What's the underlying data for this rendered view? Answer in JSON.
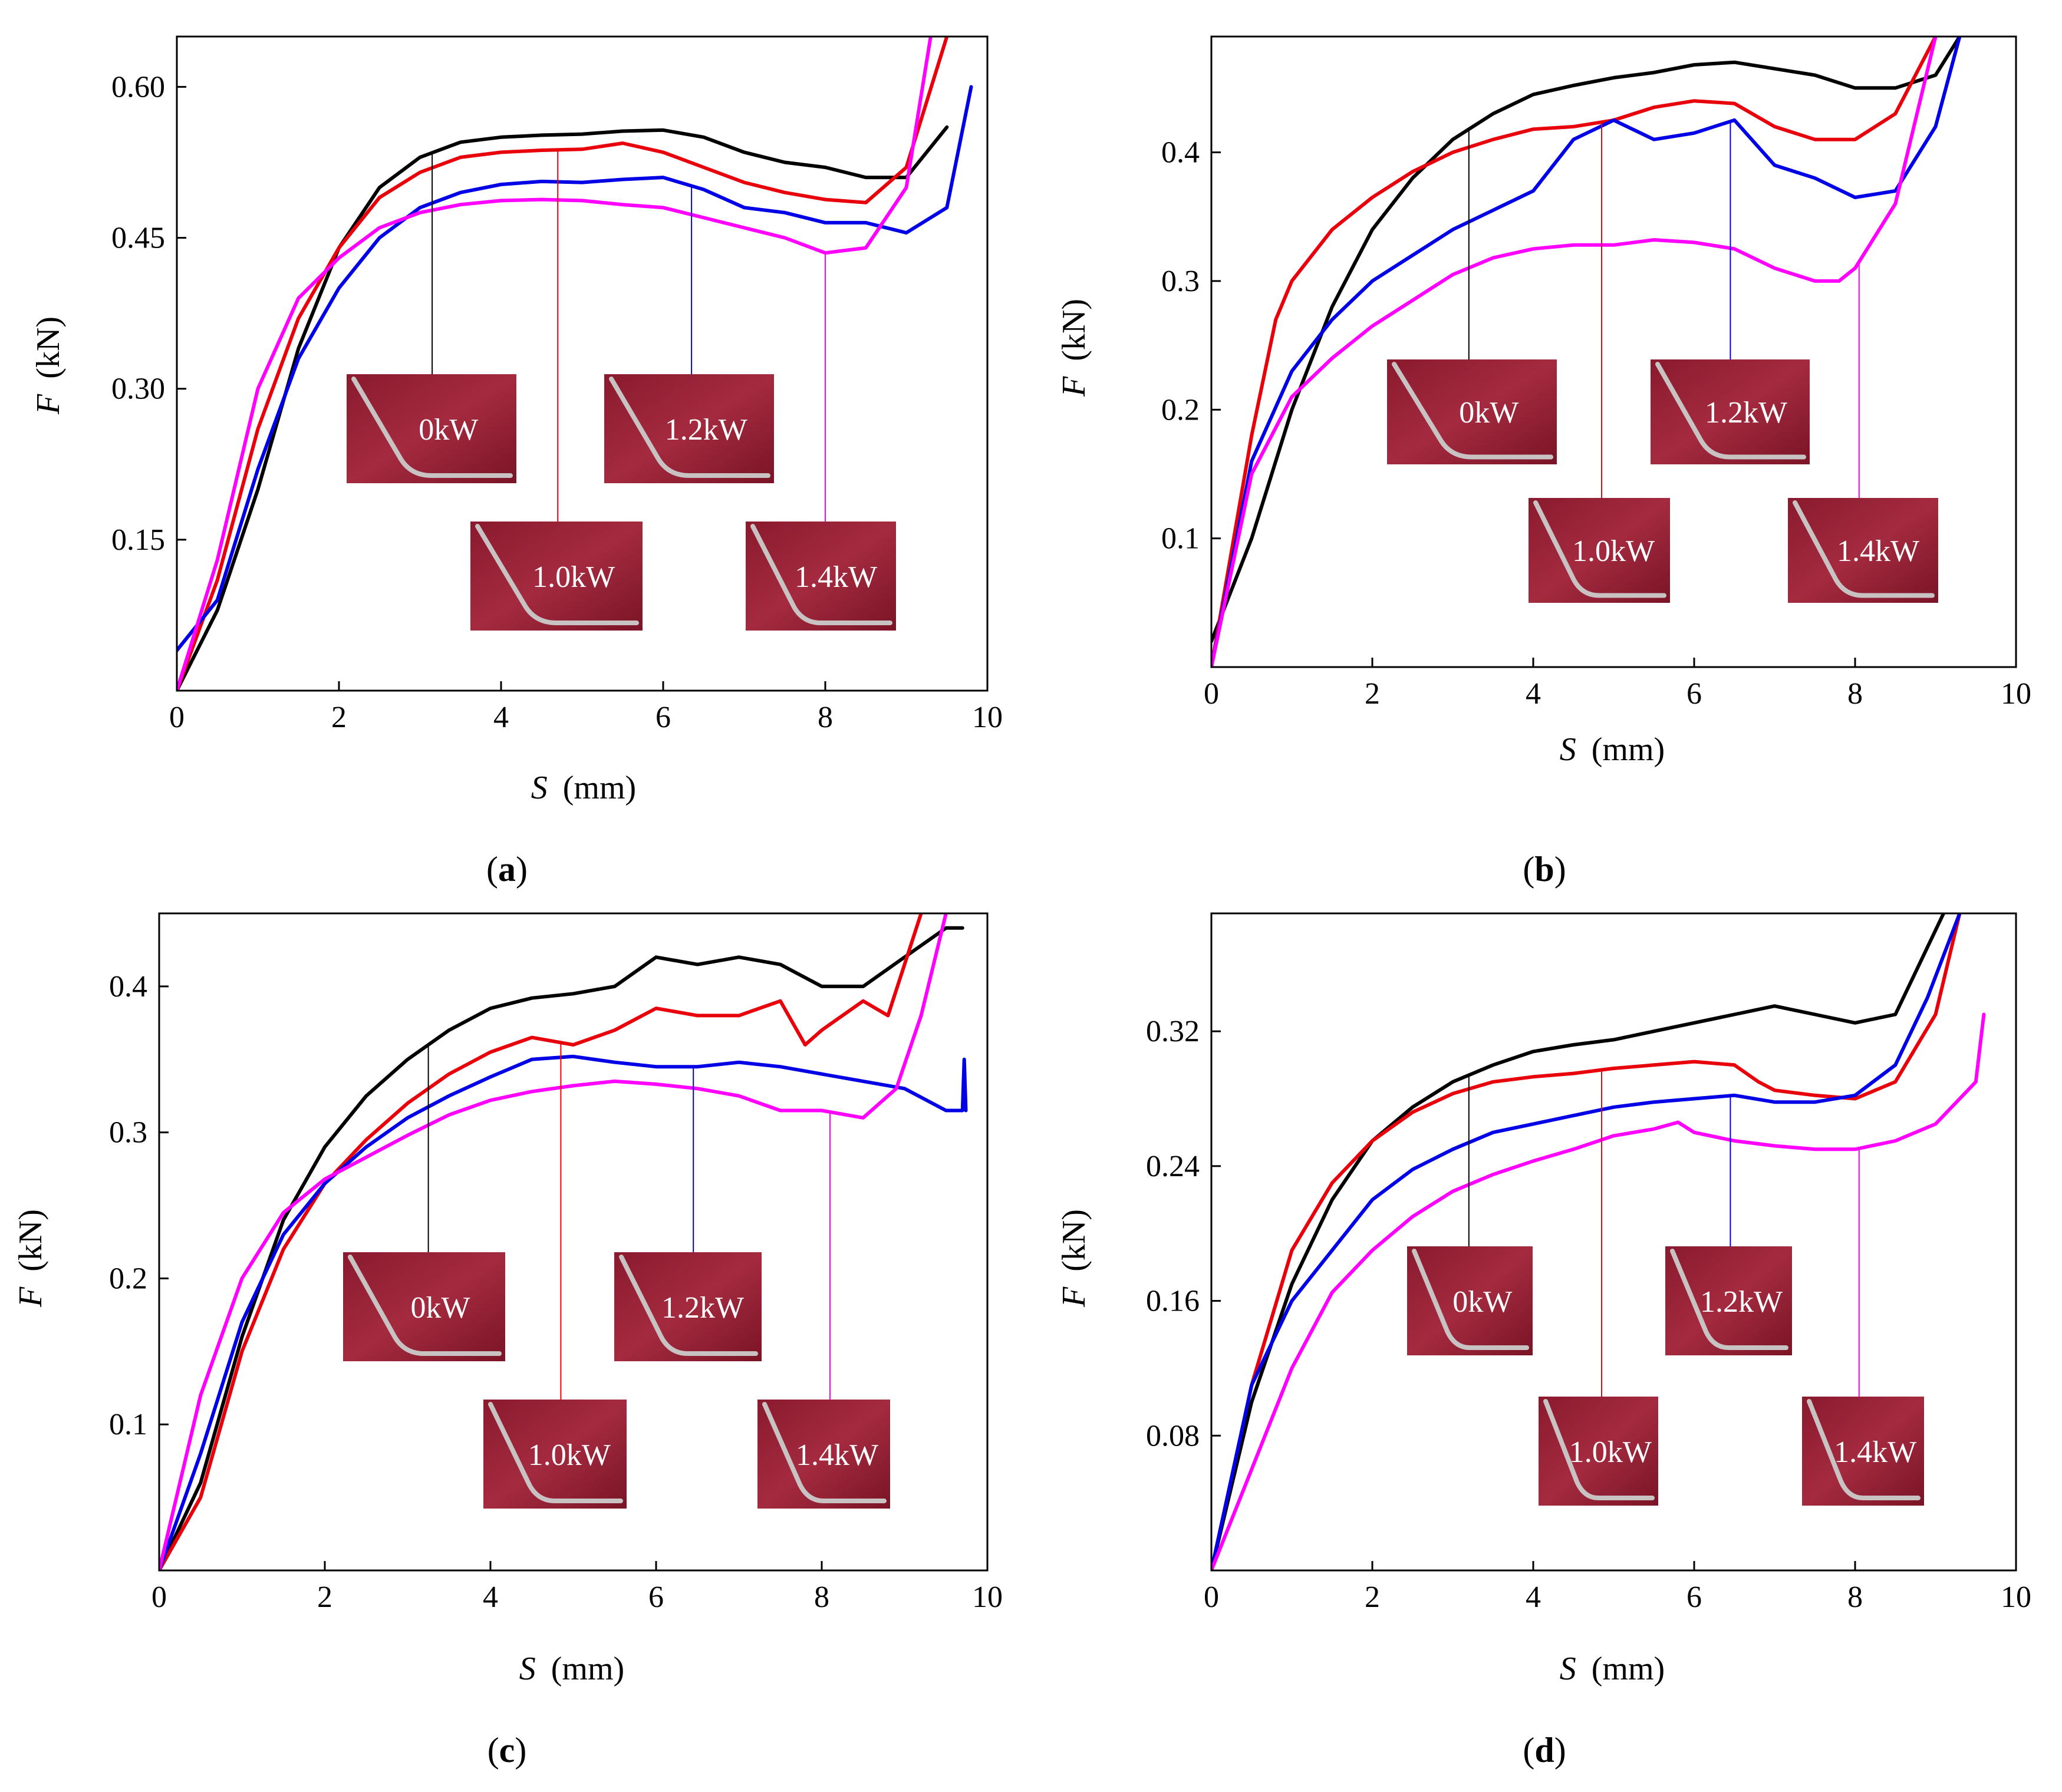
{
  "chart_data": [
    {
      "id": "a",
      "type": "line",
      "panel_label": "a",
      "xlabel": "S",
      "xunit": "(mm)",
      "ylabel": "F",
      "yunit": "(kN)",
      "xlim": [
        0,
        10
      ],
      "ylim": [
        0,
        0.65
      ],
      "x_ticks": [
        0,
        2,
        4,
        6,
        8,
        10
      ],
      "x_tick_labels": [
        "0",
        "2",
        "4",
        "6",
        "8",
        "10"
      ],
      "y_ticks": [
        0.15,
        0.3,
        0.45,
        0.6
      ],
      "y_tick_labels": [
        "0.15",
        "0.30",
        "0.45",
        "0.60"
      ],
      "series": [
        {
          "name": "0kW",
          "color": "#000000",
          "x": [
            0,
            0.5,
            1,
            1.5,
            2,
            2.5,
            3,
            3.5,
            4,
            4.5,
            5,
            5.5,
            6,
            6.5,
            7,
            7.5,
            8,
            8.5,
            9,
            9.5
          ],
          "y": [
            0.0,
            0.08,
            0.2,
            0.34,
            0.44,
            0.5,
            0.53,
            0.545,
            0.55,
            0.552,
            0.553,
            0.556,
            0.557,
            0.55,
            0.535,
            0.525,
            0.52,
            0.51,
            0.51,
            0.56
          ]
        },
        {
          "name": "1.0kW",
          "color": "#e8000b",
          "x": [
            0,
            0.5,
            1,
            1.5,
            2,
            2.5,
            3,
            3.5,
            4,
            4.5,
            5,
            5.5,
            6,
            6.5,
            7,
            7.5,
            8,
            8.5,
            9,
            9.5
          ],
          "y": [
            0.0,
            0.11,
            0.26,
            0.37,
            0.44,
            0.49,
            0.515,
            0.53,
            0.535,
            0.537,
            0.538,
            0.544,
            0.535,
            0.52,
            0.505,
            0.495,
            0.488,
            0.485,
            0.52,
            0.65
          ]
        },
        {
          "name": "1.2kW",
          "color": "#0000e6",
          "x": [
            0,
            0.5,
            1,
            1.5,
            2,
            2.5,
            3,
            3.5,
            4,
            4.5,
            5,
            5.5,
            6,
            6.5,
            7,
            7.5,
            8,
            8.5,
            9,
            9.5,
            9.8
          ],
          "y": [
            0.04,
            0.09,
            0.22,
            0.33,
            0.4,
            0.45,
            0.48,
            0.495,
            0.503,
            0.506,
            0.505,
            0.508,
            0.51,
            0.498,
            0.48,
            0.475,
            0.465,
            0.465,
            0.455,
            0.48,
            0.6
          ]
        },
        {
          "name": "1.4kW",
          "color": "#ff00ff",
          "x": [
            0,
            0.5,
            1,
            1.5,
            2,
            2.5,
            3,
            3.5,
            4,
            4.5,
            5,
            5.5,
            6,
            6.5,
            7,
            7.5,
            8,
            8.5,
            9,
            9.3
          ],
          "y": [
            0.0,
            0.13,
            0.3,
            0.39,
            0.43,
            0.46,
            0.475,
            0.483,
            0.487,
            0.488,
            0.487,
            0.483,
            0.48,
            0.47,
            0.46,
            0.45,
            0.435,
            0.44,
            0.5,
            0.65
          ]
        }
      ],
      "insets": [
        {
          "label": "0kW",
          "series": "0kW",
          "x": 3.15
        },
        {
          "label": "1.0kW",
          "series": "1.0kW",
          "x": 4.7
        },
        {
          "label": "1.2kW",
          "series": "1.2kW",
          "x": 6.35
        },
        {
          "label": "1.4kW",
          "series": "1.4kW",
          "x": 8.0
        }
      ]
    },
    {
      "id": "b",
      "type": "line",
      "panel_label": "b",
      "xlabel": "S",
      "xunit": "(mm)",
      "ylabel": "F",
      "yunit": "(kN)",
      "xlim": [
        0,
        10
      ],
      "ylim": [
        0,
        0.49
      ],
      "x_ticks": [
        0,
        2,
        4,
        6,
        8,
        10
      ],
      "x_tick_labels": [
        "0",
        "2",
        "4",
        "6",
        "8",
        "10"
      ],
      "y_ticks": [
        0.1,
        0.2,
        0.3,
        0.4
      ],
      "y_tick_labels": [
        "0.1",
        "0.2",
        "0.3",
        "0.4"
      ],
      "series": [
        {
          "name": "0kW",
          "color": "#000000",
          "x": [
            0,
            0.5,
            1,
            1.5,
            2,
            2.5,
            3,
            3.5,
            4,
            4.5,
            5,
            5.5,
            6,
            6.5,
            7,
            7.5,
            8,
            8.5,
            9,
            9.3
          ],
          "y": [
            0.02,
            0.1,
            0.2,
            0.28,
            0.34,
            0.38,
            0.41,
            0.43,
            0.445,
            0.452,
            0.458,
            0.462,
            0.468,
            0.47,
            0.465,
            0.46,
            0.45,
            0.45,
            0.46,
            0.49
          ]
        },
        {
          "name": "1.0kW",
          "color": "#e8000b",
          "x": [
            0,
            0.5,
            0.8,
            1,
            1.5,
            2,
            2.5,
            3,
            3.5,
            4,
            4.5,
            5,
            5.5,
            6,
            6.5,
            7,
            7.5,
            8,
            8.5,
            9
          ],
          "y": [
            0.0,
            0.18,
            0.27,
            0.3,
            0.34,
            0.365,
            0.385,
            0.4,
            0.41,
            0.418,
            0.42,
            0.425,
            0.435,
            0.44,
            0.438,
            0.42,
            0.41,
            0.41,
            0.43,
            0.49
          ]
        },
        {
          "name": "1.2kW",
          "color": "#0000e6",
          "x": [
            0,
            0.5,
            1,
            1.5,
            2,
            2.5,
            3,
            3.5,
            4,
            4.5,
            5,
            5.5,
            6,
            6.5,
            7,
            7.5,
            8,
            8.5,
            9,
            9.3
          ],
          "y": [
            0.0,
            0.16,
            0.23,
            0.27,
            0.3,
            0.32,
            0.34,
            0.355,
            0.37,
            0.41,
            0.425,
            0.41,
            0.415,
            0.425,
            0.39,
            0.38,
            0.365,
            0.37,
            0.42,
            0.49
          ]
        },
        {
          "name": "1.4kW",
          "color": "#ff00ff",
          "x": [
            0,
            0.5,
            1,
            1.5,
            2,
            2.5,
            3,
            3.5,
            4,
            4.5,
            5,
            5.5,
            6,
            6.5,
            7,
            7.5,
            7.8,
            8,
            8.5,
            9
          ],
          "y": [
            0.0,
            0.15,
            0.21,
            0.24,
            0.265,
            0.285,
            0.305,
            0.318,
            0.325,
            0.328,
            0.328,
            0.332,
            0.33,
            0.325,
            0.31,
            0.3,
            0.3,
            0.31,
            0.36,
            0.49
          ]
        }
      ],
      "insets": [
        {
          "label": "0kW",
          "series": "0kW",
          "x": 3.2
        },
        {
          "label": "1.0kW",
          "series": "1.0kW",
          "x": 4.85
        },
        {
          "label": "1.2kW",
          "series": "1.2kW",
          "x": 6.45
        },
        {
          "label": "1.4kW",
          "series": "1.4kW",
          "x": 8.05
        }
      ]
    },
    {
      "id": "c",
      "type": "line",
      "panel_label": "c",
      "xlabel": "S",
      "xunit": "(mm)",
      "ylabel": "F",
      "yunit": "(kN)",
      "xlim": [
        0,
        10
      ],
      "ylim": [
        0,
        0.45
      ],
      "x_ticks": [
        0,
        2,
        4,
        6,
        8,
        10
      ],
      "x_tick_labels": [
        "0",
        "2",
        "4",
        "6",
        "8",
        "10"
      ],
      "y_ticks": [
        0.1,
        0.2,
        0.3,
        0.4
      ],
      "y_tick_labels": [
        "0.1",
        "0.2",
        "0.3",
        "0.4"
      ],
      "series": [
        {
          "name": "0kW",
          "color": "#000000",
          "x": [
            0,
            0.5,
            1,
            1.5,
            2,
            2.5,
            3,
            3.5,
            4,
            4.5,
            5,
            5.5,
            6,
            6.5,
            7,
            7.5,
            8,
            8.5,
            9,
            9.5,
            9.7
          ],
          "y": [
            0.0,
            0.06,
            0.16,
            0.24,
            0.29,
            0.325,
            0.35,
            0.37,
            0.385,
            0.392,
            0.395,
            0.4,
            0.42,
            0.415,
            0.42,
            0.415,
            0.4,
            0.4,
            0.42,
            0.44,
            0.44
          ]
        },
        {
          "name": "1.0kW",
          "color": "#e8000b",
          "x": [
            0,
            0.5,
            1,
            1.5,
            2,
            2.5,
            3,
            3.5,
            4,
            4.5,
            5,
            5.5,
            6,
            6.5,
            7,
            7.5,
            7.8,
            8,
            8.5,
            8.8,
            9.2
          ],
          "y": [
            0.0,
            0.05,
            0.15,
            0.22,
            0.265,
            0.295,
            0.32,
            0.34,
            0.355,
            0.365,
            0.36,
            0.37,
            0.385,
            0.38,
            0.38,
            0.39,
            0.36,
            0.37,
            0.39,
            0.38,
            0.45
          ]
        },
        {
          "name": "1.2kW",
          "color": "#0000e6",
          "x": [
            0,
            0.5,
            1,
            1.5,
            2,
            2.5,
            3,
            3.5,
            4,
            4.5,
            5,
            5.5,
            6,
            6.5,
            7,
            7.5,
            8,
            8.5,
            9,
            9.5,
            9.7,
            9.72,
            9.74
          ],
          "y": [
            0.0,
            0.08,
            0.17,
            0.23,
            0.265,
            0.29,
            0.31,
            0.325,
            0.338,
            0.35,
            0.352,
            0.348,
            0.345,
            0.345,
            0.348,
            0.345,
            0.34,
            0.335,
            0.33,
            0.315,
            0.315,
            0.35,
            0.315
          ]
        },
        {
          "name": "1.4kW",
          "color": "#ff00ff",
          "x": [
            0,
            0.5,
            1,
            1.5,
            2,
            2.5,
            3,
            3.5,
            4,
            4.5,
            5,
            5.5,
            6,
            6.5,
            7,
            7.5,
            8,
            8.5,
            8.9,
            9.2,
            9.5
          ],
          "y": [
            0.0,
            0.12,
            0.2,
            0.245,
            0.268,
            0.283,
            0.298,
            0.312,
            0.322,
            0.328,
            0.332,
            0.335,
            0.333,
            0.33,
            0.325,
            0.315,
            0.315,
            0.31,
            0.33,
            0.38,
            0.45
          ]
        }
      ],
      "insets": [
        {
          "label": "0kW",
          "series": "0kW",
          "x": 3.25
        },
        {
          "label": "1.0kW",
          "series": "1.0kW",
          "x": 4.85
        },
        {
          "label": "1.2kW",
          "series": "1.2kW",
          "x": 6.45
        },
        {
          "label": "1.4kW",
          "series": "1.4kW",
          "x": 8.1
        }
      ]
    },
    {
      "id": "d",
      "type": "line",
      "panel_label": "d",
      "xlabel": "S",
      "xunit": "(mm)",
      "ylabel": "F",
      "yunit": "(kN)",
      "xlim": [
        0,
        10
      ],
      "ylim": [
        0,
        0.39
      ],
      "x_ticks": [
        0,
        2,
        4,
        6,
        8,
        10
      ],
      "x_tick_labels": [
        "0",
        "2",
        "4",
        "6",
        "8",
        "10"
      ],
      "y_ticks": [
        0.08,
        0.16,
        0.24,
        0.32
      ],
      "y_tick_labels": [
        "0.08",
        "0.16",
        "0.24",
        "0.32"
      ],
      "series": [
        {
          "name": "0kW",
          "color": "#000000",
          "x": [
            0,
            0.5,
            1,
            1.5,
            2,
            2.5,
            3,
            3.5,
            4,
            4.5,
            5,
            5.5,
            6,
            6.5,
            7,
            7.5,
            8,
            8.5,
            8.8,
            9.1
          ],
          "y": [
            0.0,
            0.1,
            0.17,
            0.22,
            0.255,
            0.275,
            0.29,
            0.3,
            0.308,
            0.312,
            0.315,
            0.32,
            0.325,
            0.33,
            0.335,
            0.33,
            0.325,
            0.33,
            0.36,
            0.39
          ]
        },
        {
          "name": "1.0kW",
          "color": "#e8000b",
          "x": [
            0,
            0.5,
            1,
            1.5,
            2,
            2.5,
            3,
            3.5,
            4,
            4.5,
            5,
            5.5,
            6,
            6.5,
            6.8,
            7,
            7.5,
            8,
            8.5,
            9,
            9.3
          ],
          "y": [
            0.0,
            0.11,
            0.19,
            0.23,
            0.255,
            0.272,
            0.283,
            0.29,
            0.293,
            0.295,
            0.298,
            0.3,
            0.302,
            0.3,
            0.29,
            0.285,
            0.282,
            0.28,
            0.29,
            0.33,
            0.39
          ]
        },
        {
          "name": "1.2kW",
          "color": "#0000e6",
          "x": [
            0,
            0.5,
            1,
            1.5,
            2,
            2.5,
            3,
            3.5,
            4,
            4.5,
            5,
            5.5,
            6,
            6.5,
            7,
            7.5,
            8,
            8.5,
            8.9,
            9.3
          ],
          "y": [
            0.0,
            0.11,
            0.16,
            0.19,
            0.22,
            0.238,
            0.25,
            0.26,
            0.265,
            0.27,
            0.275,
            0.278,
            0.28,
            0.282,
            0.278,
            0.278,
            0.282,
            0.3,
            0.34,
            0.39
          ]
        },
        {
          "name": "1.4kW",
          "color": "#ff00ff",
          "x": [
            0,
            0.5,
            1,
            1.5,
            2,
            2.5,
            3,
            3.5,
            4,
            4.5,
            5,
            5.5,
            5.8,
            6,
            6.5,
            7,
            7.5,
            8,
            8.5,
            9,
            9.5,
            9.6
          ],
          "y": [
            0.0,
            0.06,
            0.12,
            0.165,
            0.19,
            0.21,
            0.225,
            0.235,
            0.243,
            0.25,
            0.258,
            0.262,
            0.266,
            0.26,
            0.255,
            0.252,
            0.25,
            0.25,
            0.255,
            0.265,
            0.29,
            0.33
          ]
        }
      ],
      "insets": [
        {
          "label": "0kW",
          "series": "0kW",
          "x": 3.2
        },
        {
          "label": "1.0kW",
          "series": "1.0kW",
          "x": 4.85
        },
        {
          "label": "1.2kW",
          "series": "1.2kW",
          "x": 6.45
        },
        {
          "label": "1.4kW",
          "series": "1.4kW",
          "x": 8.05
        }
      ]
    }
  ]
}
